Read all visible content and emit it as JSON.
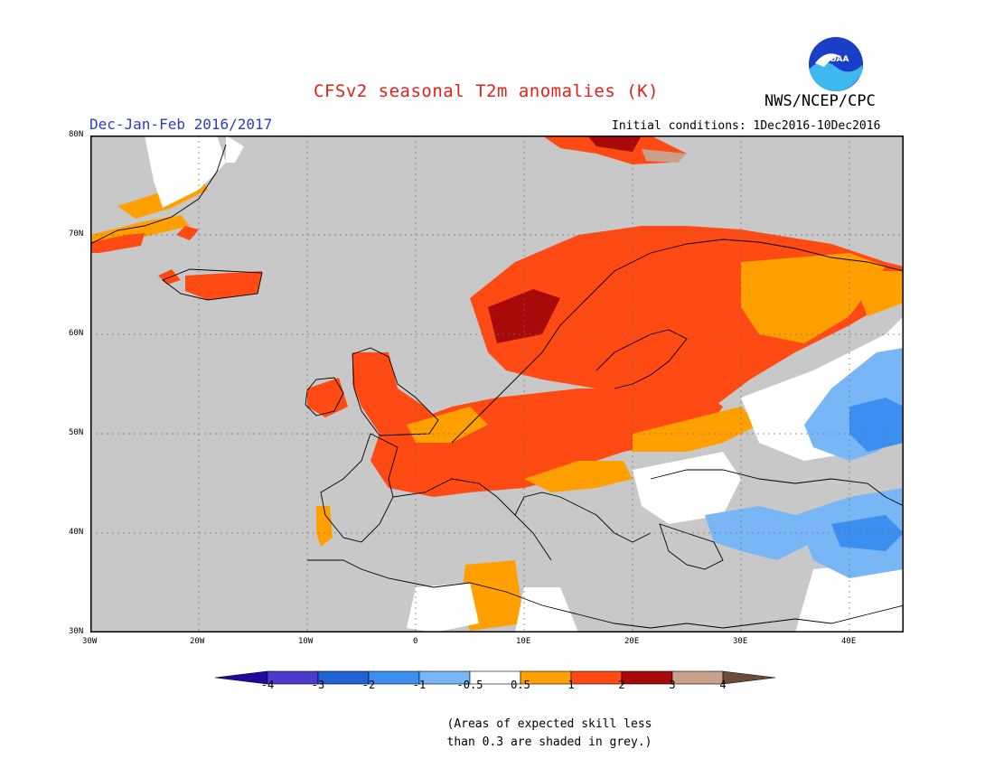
{
  "title": "CFSv2 seasonal T2m anomalies (K)",
  "organization": "NWS/NCEP/CPC",
  "logo_text": "NOAA",
  "period": "Dec-Jan-Feb 2016/2017",
  "initial_conditions": "Initial conditions: 1Dec2016-10Dec2016",
  "map": {
    "lon_range": [
      -30,
      45
    ],
    "lat_range": [
      30,
      80
    ],
    "lon_ticks": [
      "30W",
      "20W",
      "10W",
      "0",
      "10E",
      "20E",
      "30E",
      "40E"
    ],
    "lat_ticks": [
      "80N",
      "70N",
      "60N",
      "50N",
      "40N",
      "30N"
    ],
    "grid": "dotted",
    "background_color": "#c8c8c8",
    "ocean_masked": "grey"
  },
  "colorbar": {
    "levels": [
      "-4",
      "-3",
      "-2",
      "-1",
      "-0.5",
      "0.5",
      "1",
      "2",
      "3",
      "4"
    ],
    "colors": [
      "#1e0aa0",
      "#4b3ccd",
      "#1f63d6",
      "#3c8ef0",
      "#78b6f5",
      "#ffffff",
      "#ff9f00",
      "#ff4a14",
      "#a80a0a",
      "#c8a08c",
      "#6e4a3c"
    ]
  },
  "note_lines": [
    "(Areas of expected skill less",
    "than 0.3 are shaded in grey.)"
  ],
  "colors": {
    "title": "#e0201b",
    "period": "#2a3cc8"
  }
}
